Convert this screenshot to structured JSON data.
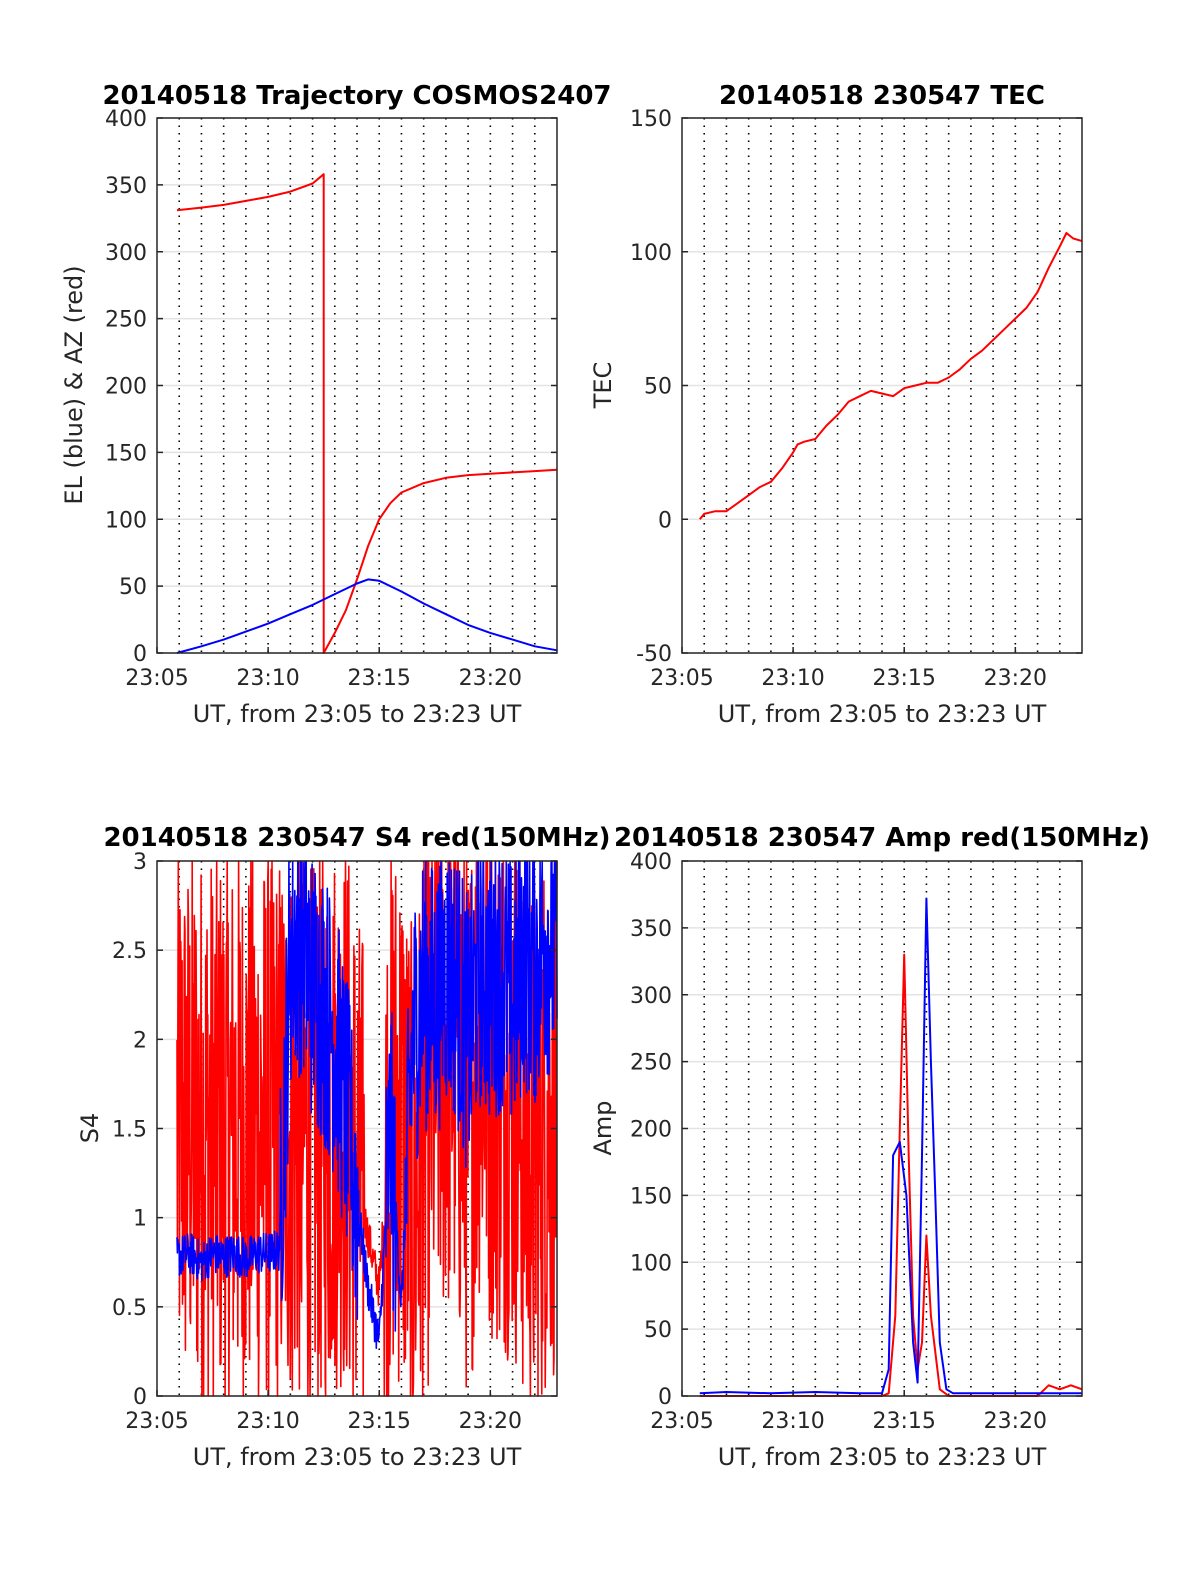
{
  "colors": {
    "el": "#0000ff",
    "az": "#ff0000",
    "grid": "#000000",
    "axis": "#262626"
  },
  "chart_data": [
    {
      "id": "trajectory",
      "type": "line",
      "title": "20140518 Trajectory COSMOS2407",
      "xlabel": "UT, from 23:05 to 23:23 UT",
      "ylabel": "EL (blue) & AZ (red)",
      "xlim": [
        0,
        18
      ],
      "ylim": [
        0,
        400
      ],
      "xticks": [
        0,
        5,
        10,
        15
      ],
      "xtick_labels": [
        "23:05",
        "23:10",
        "23:15",
        "23:20"
      ],
      "yticks": [
        0,
        50,
        100,
        150,
        200,
        250,
        300,
        350,
        400
      ],
      "ytick_labels": [
        "0",
        "50",
        "100",
        "150",
        "200",
        "250",
        "300",
        "350",
        "400"
      ],
      "minor_x_grid": "dotted, every 1 min",
      "series": [
        {
          "color": "#ff0000",
          "x": [
            0.9,
            2,
            3,
            4,
            5,
            6,
            7,
            7.5,
            7.5,
            7.6,
            8,
            8.5,
            9,
            9.5,
            10,
            10.5,
            11,
            12,
            13,
            14,
            15,
            16,
            17,
            18
          ],
          "y": [
            331,
            333,
            335,
            338,
            341,
            345,
            351,
            358,
            0,
            3,
            15,
            32,
            55,
            80,
            100,
            112,
            120,
            127,
            131,
            133,
            134,
            135,
            136,
            137
          ]
        },
        {
          "color": "#0000ff",
          "x": [
            0.9,
            2,
            3,
            4,
            5,
            6,
            7,
            8,
            9,
            9.5,
            10,
            11,
            12,
            13,
            14,
            15,
            16,
            17,
            18
          ],
          "y": [
            0,
            5,
            10,
            16,
            22,
            29,
            36,
            44,
            52,
            55,
            54,
            46,
            37,
            29,
            21,
            15,
            10,
            5,
            2
          ]
        }
      ]
    },
    {
      "id": "tec",
      "type": "line",
      "title": "20140518 230547 TEC",
      "xlabel": "UT, from 23:05 to 23:23 UT",
      "ylabel": "TEC",
      "xlim": [
        0,
        18
      ],
      "ylim": [
        -50,
        150
      ],
      "xticks": [
        0,
        5,
        10,
        15
      ],
      "xtick_labels": [
        "23:05",
        "23:10",
        "23:15",
        "23:20"
      ],
      "yticks": [
        -50,
        0,
        50,
        100,
        150
      ],
      "ytick_labels": [
        "-50",
        "0",
        "50",
        "100",
        "150"
      ],
      "series": [
        {
          "color": "#ff0000",
          "x": [
            0.8,
            1,
            1.5,
            2,
            2.5,
            3,
            3.5,
            4,
            4.5,
            5,
            5.2,
            5.5,
            6,
            6.5,
            7,
            7.5,
            8,
            8.5,
            9,
            9.5,
            10,
            10.5,
            11,
            11.5,
            12,
            12.5,
            13,
            13.5,
            14,
            14.5,
            15,
            15.5,
            16,
            16.5,
            17,
            17.3,
            17.6,
            18
          ],
          "y": [
            0,
            2,
            3,
            3,
            6,
            9,
            12,
            14,
            19,
            25,
            28,
            29,
            30,
            35,
            39,
            44,
            46,
            48,
            47,
            46,
            49,
            50,
            51,
            51,
            53,
            56,
            60,
            63,
            67,
            71,
            75,
            79,
            85,
            94,
            102,
            107,
            105,
            104
          ]
        }
      ]
    },
    {
      "id": "s4",
      "type": "line",
      "title": "20140518 230547 S4 red(150MHz)",
      "xlabel": "UT, from 23:05 to 23:23 UT",
      "ylabel": "S4",
      "xlim": [
        0,
        18
      ],
      "ylim": [
        0,
        3
      ],
      "xticks": [
        0,
        5,
        10,
        15
      ],
      "xtick_labels": [
        "23:05",
        "23:10",
        "23:15",
        "23:20"
      ],
      "yticks": [
        0,
        0.5,
        1,
        1.5,
        2,
        2.5,
        3
      ],
      "ytick_labels": [
        "0",
        "0.5",
        "1",
        "1.5",
        "2",
        "2.5",
        "3"
      ],
      "series": [
        {
          "color": "#ff0000",
          "noisy": true,
          "x": [
            0.9,
            1.5,
            2,
            2.5,
            3,
            3.5,
            4,
            4.5,
            5,
            5.5,
            6,
            6.5,
            7,
            7.5,
            8,
            8.5,
            9,
            9.5,
            10,
            10.5,
            11,
            11.5,
            12,
            12.5,
            13,
            13.5,
            14,
            14.5,
            15,
            15.5,
            16,
            16.5,
            17,
            17.5,
            18
          ],
          "y": [
            1.5,
            1.5,
            1.5,
            1.5,
            1.5,
            1.5,
            1.5,
            1.5,
            1.5,
            1.5,
            1.5,
            1.5,
            1.4,
            1.5,
            1.6,
            1.6,
            1.2,
            0.9,
            0.6,
            1.6,
            1.6,
            1.0,
            1.5,
            1.8,
            2.0,
            1.9,
            1.5,
            2.1,
            1.9,
            1.8,
            1.8,
            1.5,
            1.3,
            1.6,
            1.7
          ]
        },
        {
          "color": "#0000ff",
          "noisy": true,
          "x": [
            0.9,
            1.5,
            2,
            2.5,
            3,
            3.5,
            4,
            4.5,
            5,
            5.5,
            6,
            6.5,
            7,
            7.5,
            8,
            8.5,
            9,
            9.5,
            10,
            10.5,
            11,
            11.5,
            12,
            12.5,
            13,
            13.5,
            14,
            14.5,
            15,
            15.5,
            16,
            16.5,
            17,
            17.5,
            18
          ],
          "y": [
            0.78,
            0.8,
            0.75,
            0.8,
            0.78,
            0.8,
            0.77,
            0.8,
            0.8,
            0.82,
            2.5,
            2.6,
            2.3,
            2.2,
            2.0,
            1.6,
            1.1,
            0.6,
            0.3,
            1.5,
            0.5,
            2.0,
            2.3,
            2.2,
            2.4,
            2.3,
            2.0,
            2.4,
            2.3,
            2.4,
            2.2,
            2.5,
            2.4,
            2.6,
            2.5
          ]
        }
      ]
    },
    {
      "id": "amp",
      "type": "line",
      "title": "20140518 230547 Amp red(150MHz)",
      "xlabel": "UT, from 23:05 to 23:23 UT",
      "ylabel": "Amp",
      "xlim": [
        0,
        18
      ],
      "ylim": [
        0,
        400
      ],
      "xticks": [
        0,
        5,
        10,
        15
      ],
      "xtick_labels": [
        "23:05",
        "23:10",
        "23:15",
        "23:20"
      ],
      "yticks": [
        0,
        50,
        100,
        150,
        200,
        250,
        300,
        350,
        400
      ],
      "ytick_labels": [
        "0",
        "50",
        "100",
        "150",
        "200",
        "250",
        "300",
        "350",
        "400"
      ],
      "series": [
        {
          "color": "#ff0000",
          "x": [
            0.8,
            9,
            9.3,
            9.6,
            9.8,
            10.0,
            10.2,
            10.4,
            10.6,
            10.8,
            11.0,
            11.2,
            11.6,
            12,
            16,
            16.5,
            17,
            17.5,
            18
          ],
          "y": [
            0,
            0,
            2,
            60,
            200,
            330,
            180,
            60,
            20,
            40,
            120,
            60,
            5,
            0,
            0,
            8,
            5,
            8,
            5
          ]
        },
        {
          "color": "#0000ff",
          "x": [
            0.8,
            2,
            4,
            6,
            8,
            9,
            9.3,
            9.5,
            9.8,
            10.1,
            10.4,
            10.6,
            10.8,
            11.0,
            11.2,
            11.4,
            11.6,
            11.9,
            12.2,
            14,
            16,
            18
          ],
          "y": [
            2,
            3,
            2,
            3,
            2,
            2,
            20,
            180,
            190,
            150,
            40,
            10,
            180,
            372,
            250,
            150,
            40,
            5,
            2,
            2,
            2,
            2
          ]
        }
      ]
    }
  ]
}
